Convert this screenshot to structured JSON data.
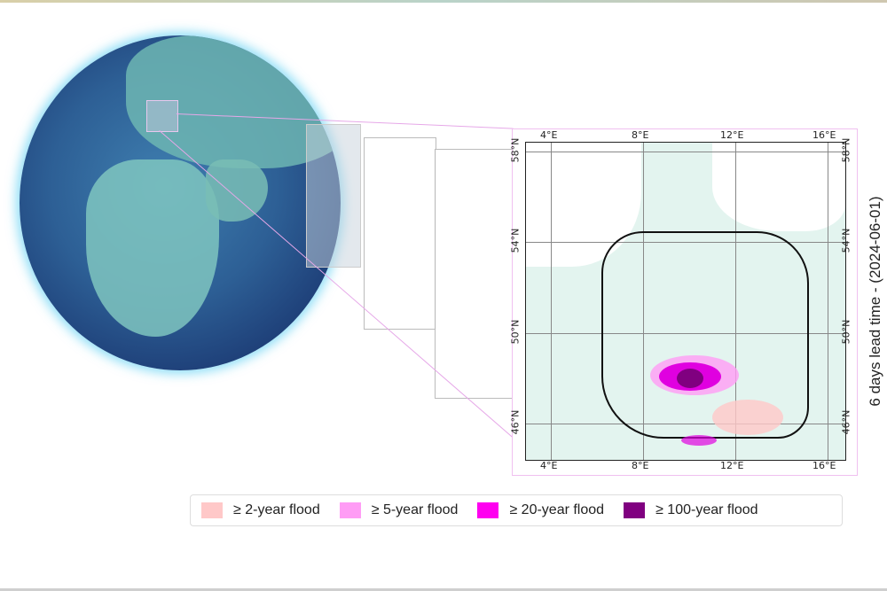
{
  "map": {
    "side_title": "6 days lead time - (2024-06-01)",
    "lon_ticks": [
      "4°E",
      "8°E",
      "12°E",
      "16°E"
    ],
    "lat_ticks": [
      "58°N",
      "54°N",
      "50°N",
      "46°N"
    ]
  },
  "legend": {
    "items": [
      {
        "label": "≥ 2-year flood",
        "color": "#ffc8c8"
      },
      {
        "label": "≥ 5-year flood",
        "color": "#ff9cf5"
      },
      {
        "label": "≥ 20-year flood",
        "color": "#ff00f0"
      },
      {
        "label": "≥ 100-year flood",
        "color": "#800080"
      }
    ]
  }
}
